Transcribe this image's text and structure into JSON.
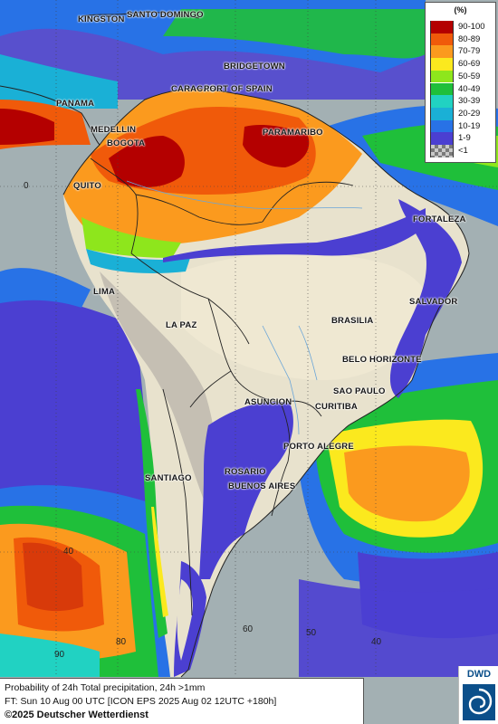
{
  "legend": {
    "unit": "(%)",
    "classes": [
      {
        "label": "90-100",
        "color": "#b40000"
      },
      {
        "label": "80-89",
        "color": "#f05a0a"
      },
      {
        "label": "70-79",
        "color": "#fb9a1e"
      },
      {
        "label": "60-69",
        "color": "#fbe91e"
      },
      {
        "label": "50-59",
        "color": "#8ee61c"
      },
      {
        "label": "40-49",
        "color": "#1fbf3a"
      },
      {
        "label": "30-39",
        "color": "#21d2c2"
      },
      {
        "label": "20-29",
        "color": "#1ab0d6"
      },
      {
        "label": "10-19",
        "color": "#2872e6"
      },
      {
        "label": "1-9",
        "color": "#4b3fd1"
      },
      {
        "label": "<1",
        "color": "#9a9a9a"
      }
    ]
  },
  "cities": {
    "kingston": "KINGSTON",
    "santo_domingo": "SANTO DOMINGO",
    "bridgetown": "BRIDGETOWN",
    "caracas": "CARACAS",
    "port_of_spain": "PORT OF SPAIN",
    "panama": "PANAMA",
    "medellin": "MEDELLIN",
    "bogota": "BOGOTA",
    "paramaribo": "PARAMARIBO",
    "quito": "QUITO",
    "fortaleza": "FORTALEZA",
    "lima": "LIMA",
    "salvador": "SALVADOR",
    "la_paz": "LA PAZ",
    "brasilia": "BRASILIA",
    "belo_horizonte": "BELO HORIZONTE",
    "sao_paulo": "SAO PAULO",
    "asuncion": "ASUNCION",
    "curitiba": "CURITIBA",
    "porto_alegre": "PORTO ALEGRE",
    "rosario": "ROSARIO",
    "santiago": "SANTIAGO",
    "buenos_aires": "BUENOS AIRES"
  },
  "coords": {
    "lat_0": "0",
    "lon_90_bottom": "90",
    "lon_80_bottom": "80",
    "lat_40_left": "40",
    "lon_60_bottom": "60",
    "lon_50_bottom": "50",
    "lon_40_bottom": "40"
  },
  "footer": {
    "line1": "Probability of 24h Total precipitation, 24h >1mm",
    "line2": "FT: Sun 10 Aug 00 UTC [ICON EPS 2025 Aug 02 12UTC +180h]",
    "line3": "©2025 Deutscher Wetterdienst"
  },
  "logo": {
    "text": "DWD"
  }
}
